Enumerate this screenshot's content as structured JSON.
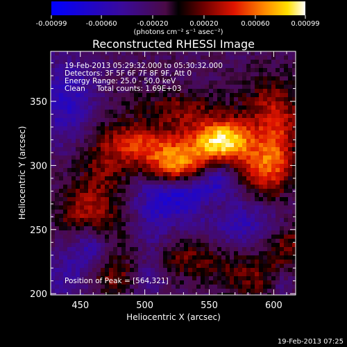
{
  "colorbar": {
    "tick_labels": [
      "-0.00099",
      "-0.00060",
      "-0.00020",
      "0.00020",
      "0.00060",
      "0.00099"
    ],
    "units_label": "(photons cm⁻² s⁻¹ asec⁻²)",
    "range": [
      -0.00099,
      0.00099
    ]
  },
  "plot": {
    "title": "Reconstructed RHESSI Image",
    "info_lines": [
      "19-Feb-2013 05:29:32.000 to 05:30:32.000",
      "Detectors: 3F 5F 6F 7F 8F 9F, Att 0",
      "Energy Range: 25.0 - 50.0 keV",
      "Clean     Total counts: 1.69E+03"
    ],
    "peak_label": "Position of Peak = [564,321]",
    "x_axis": {
      "label": "Heliocentric X (arcsec)",
      "range": [
        427,
        617
      ],
      "ticks": [
        450,
        500,
        550,
        600
      ]
    },
    "y_axis": {
      "label": "Heliocentric Y (arcsec)",
      "range": [
        199,
        389
      ],
      "ticks": [
        200,
        250,
        300,
        350
      ]
    },
    "peak": [
      564,
      321
    ]
  },
  "footer": {
    "timestamp": "19-Feb-2013 07:25"
  },
  "colors": {
    "background": "#000000",
    "text": "#ffffff"
  }
}
